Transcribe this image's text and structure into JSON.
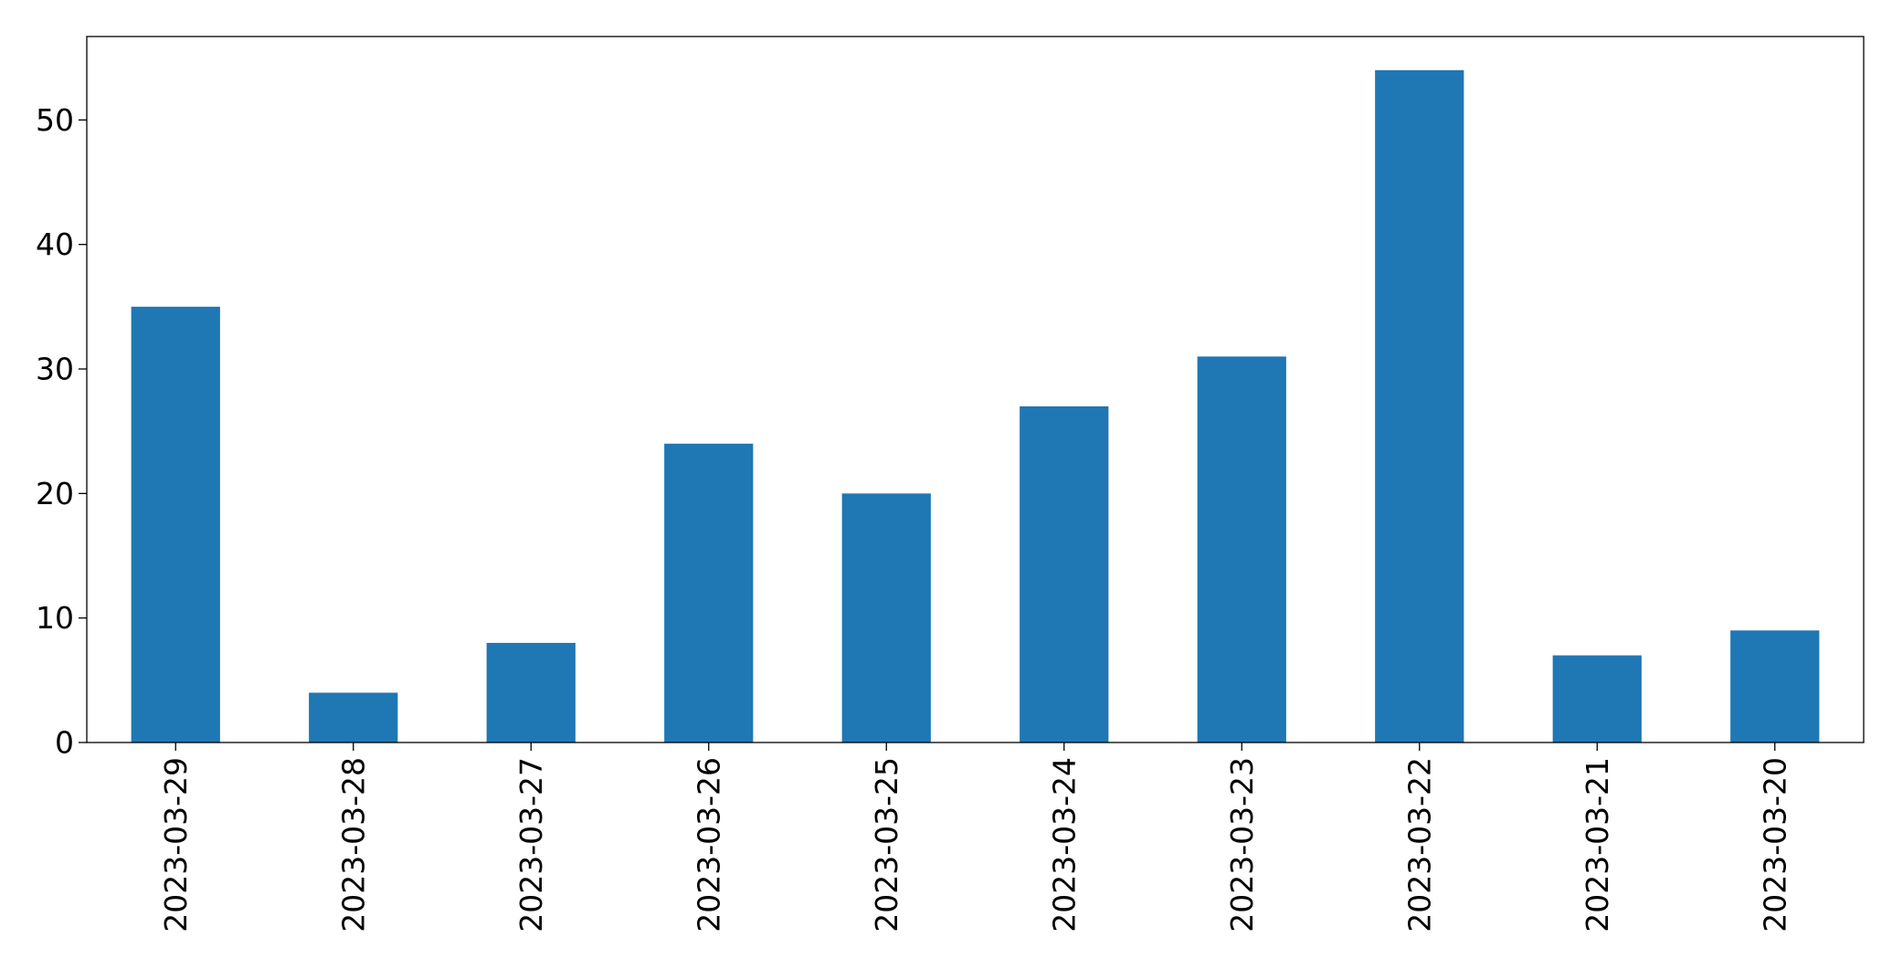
{
  "chart_data": {
    "type": "bar",
    "title": "",
    "xlabel": "",
    "ylabel": "",
    "categories": [
      "2023-03-29",
      "2023-03-28",
      "2023-03-27",
      "2023-03-26",
      "2023-03-25",
      "2023-03-24",
      "2023-03-23",
      "2023-03-22",
      "2023-03-21",
      "2023-03-20"
    ],
    "values": [
      35,
      4,
      8,
      24,
      20,
      27,
      31,
      54,
      7,
      9
    ],
    "ylim": [
      0,
      56.7
    ],
    "yticks": [
      0,
      10,
      20,
      30,
      40,
      50
    ],
    "x_tick_rotation": "vertical",
    "grid": false,
    "legend": "none",
    "bar_color": "#1f77b4"
  }
}
